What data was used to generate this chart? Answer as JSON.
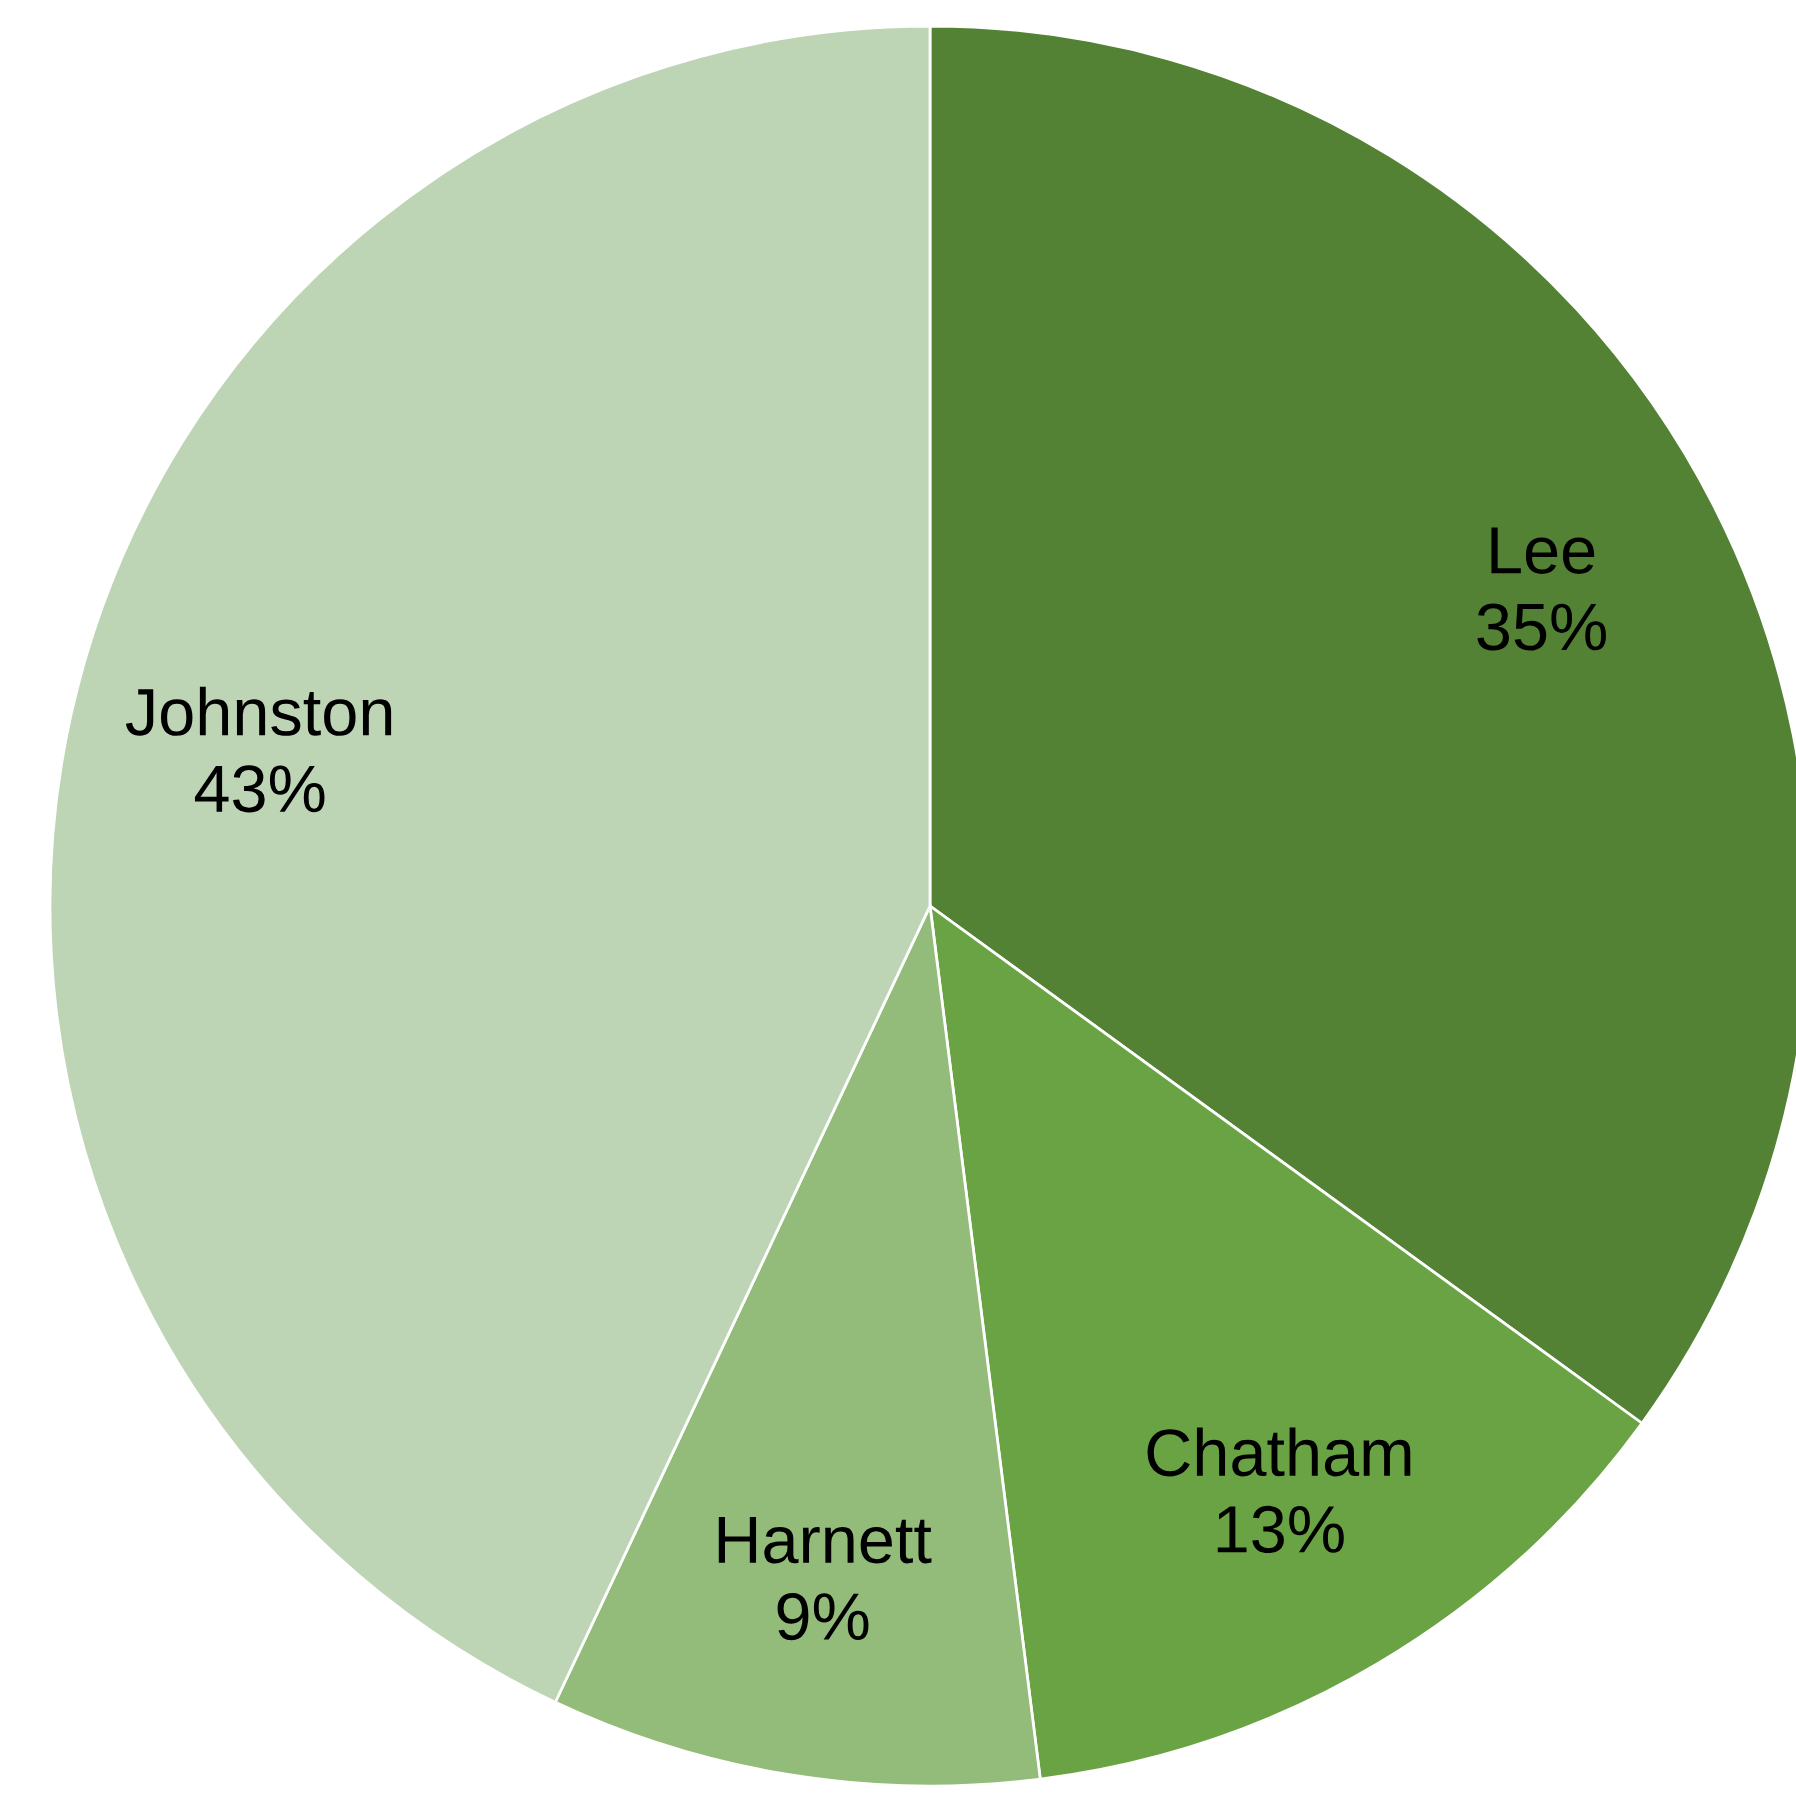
{
  "chart_data": {
    "type": "pie",
    "categories": [
      "Lee",
      "Chatham",
      "Harnett",
      "Johnston"
    ],
    "values": [
      35,
      13,
      9,
      43
    ],
    "colors": [
      "#548235",
      "#6aa343",
      "#93bb7a",
      "#bdd5b5"
    ],
    "value_labels": [
      "35%",
      "13%",
      "9%",
      "43%"
    ]
  }
}
